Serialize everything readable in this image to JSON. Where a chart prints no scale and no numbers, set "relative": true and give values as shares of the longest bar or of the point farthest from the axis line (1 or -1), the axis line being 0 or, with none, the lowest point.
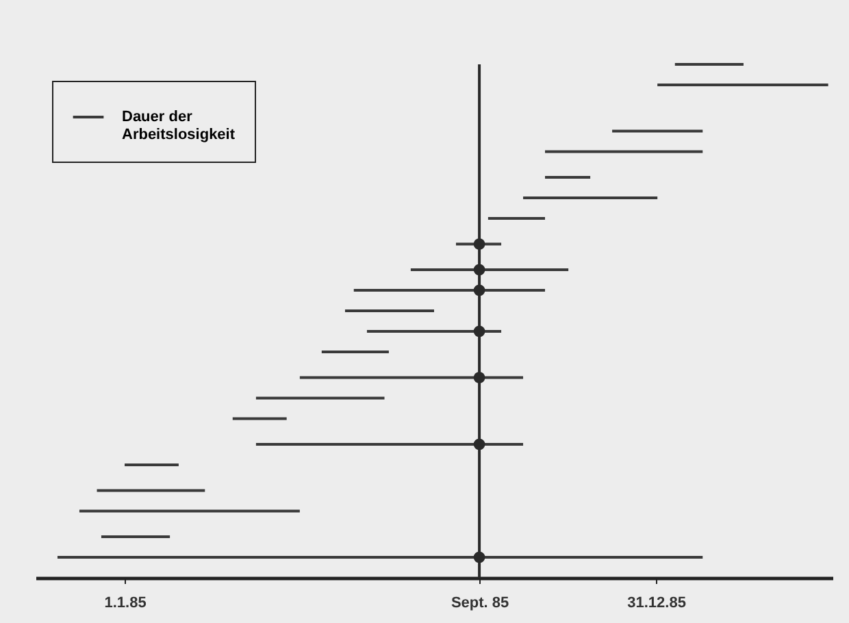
{
  "chart_data": {
    "type": "line",
    "relative": true,
    "marker": "none",
    "line_style": "solid",
    "series": [
      {
        "name": "Dauer der Arbeitslosigkeit",
        "color": "#3a3a3a",
        "x": [
          "1986-01-13",
          "1986-03-01"
        ],
        "values": [
          1.0,
          1.0
        ]
      },
      {
        "color": "#3a3a3a",
        "x": [
          "1986-01-01",
          "1986-04-28"
        ],
        "values": [
          0.96,
          0.96
        ]
      },
      {
        "color": "#3a3a3a",
        "x": [
          "1985-12-01",
          "1986-02-01"
        ],
        "values": [
          0.87,
          0.87
        ]
      },
      {
        "color": "#3a3a3a",
        "x": [
          "1985-10-16",
          "1986-02-01"
        ],
        "values": [
          0.83,
          0.83
        ]
      },
      {
        "color": "#3a3a3a",
        "x": [
          "1985-10-16",
          "1985-11-16"
        ],
        "values": [
          0.78,
          0.78
        ]
      },
      {
        "color": "#3a3a3a",
        "x": [
          "1985-10-01",
          "1986-01-01"
        ],
        "values": [
          0.74,
          0.74
        ]
      },
      {
        "color": "#3a3a3a",
        "x": [
          "1985-09-07",
          "1985-10-16"
        ],
        "values": [
          0.7,
          0.7
        ]
      },
      {
        "color": "#3a3a3a",
        "x": [
          "1985-08-16",
          "1985-09-16"
        ],
        "values": [
          0.65,
          0.65
        ]
      },
      {
        "color": "#3a3a3a",
        "x": [
          "1985-07-16",
          "1985-11-01"
        ],
        "values": [
          0.6,
          0.6
        ]
      },
      {
        "color": "#3a3a3a",
        "x": [
          "1985-06-07",
          "1985-10-16"
        ],
        "values": [
          0.56,
          0.56
        ]
      },
      {
        "color": "#3a3a3a",
        "x": [
          "1985-06-01",
          "1985-08-01"
        ],
        "values": [
          0.52,
          0.52
        ]
      },
      {
        "color": "#3a3a3a",
        "x": [
          "1985-06-16",
          "1985-09-16"
        ],
        "values": [
          0.48,
          0.48
        ]
      },
      {
        "color": "#3a3a3a",
        "x": [
          "1985-05-16",
          "1985-07-01"
        ],
        "values": [
          0.44,
          0.44
        ]
      },
      {
        "color": "#3a3a3a",
        "x": [
          "1985-05-01",
          "1985-10-01"
        ],
        "values": [
          0.39,
          0.39
        ]
      },
      {
        "color": "#3a3a3a",
        "x": [
          "1985-04-01",
          "1985-06-28"
        ],
        "values": [
          0.35,
          0.35
        ]
      },
      {
        "color": "#3a3a3a",
        "x": [
          "1985-03-16",
          "1985-04-22"
        ],
        "values": [
          0.31,
          0.31
        ]
      },
      {
        "color": "#3a3a3a",
        "x": [
          "1985-04-01",
          "1985-10-01"
        ],
        "values": [
          0.26,
          0.26
        ]
      },
      {
        "color": "#3a3a3a",
        "x": [
          "1985-01-01",
          "1985-02-07"
        ],
        "values": [
          0.22,
          0.22
        ]
      },
      {
        "color": "#3a3a3a",
        "x": [
          "1984-12-13",
          "1985-02-25"
        ],
        "values": [
          0.17,
          0.17
        ]
      },
      {
        "color": "#3a3a3a",
        "x": [
          "1984-12-01",
          "1985-05-01"
        ],
        "values": [
          0.13,
          0.13
        ]
      },
      {
        "color": "#3a3a3a",
        "x": [
          "1984-12-16",
          "1985-02-01"
        ],
        "values": [
          0.08,
          0.08
        ]
      },
      {
        "color": "#3a3a3a",
        "x": [
          "1984-11-16",
          "1986-02-01"
        ],
        "values": [
          0.04,
          0.04
        ]
      },
      {
        "type": "scatter",
        "color": "#2a2a2a",
        "marker": "circle",
        "x": [
          "1985-09-01",
          "1985-09-01",
          "1985-09-01",
          "1985-09-01",
          "1985-09-01",
          "1985-09-01",
          "1985-09-01"
        ],
        "values": [
          0.65,
          0.6,
          0.56,
          0.48,
          0.39,
          0.26,
          0.04
        ]
      }
    ],
    "xlim": [
      "1984-11-01",
      "1986-05-01"
    ],
    "xticks": [
      {
        "value": "1985-01-01",
        "label": "1.1.85"
      },
      {
        "value": "1985-09-01",
        "label": "Sept. 85"
      },
      {
        "value": "1985-12-31",
        "label": "31.12.85"
      }
    ],
    "ref_lines": [
      {
        "axis": "x",
        "value": "1985-09-01",
        "color": "#2a2a2a"
      }
    ],
    "tick_labels": "x",
    "grid": false,
    "legend": "top left"
  }
}
